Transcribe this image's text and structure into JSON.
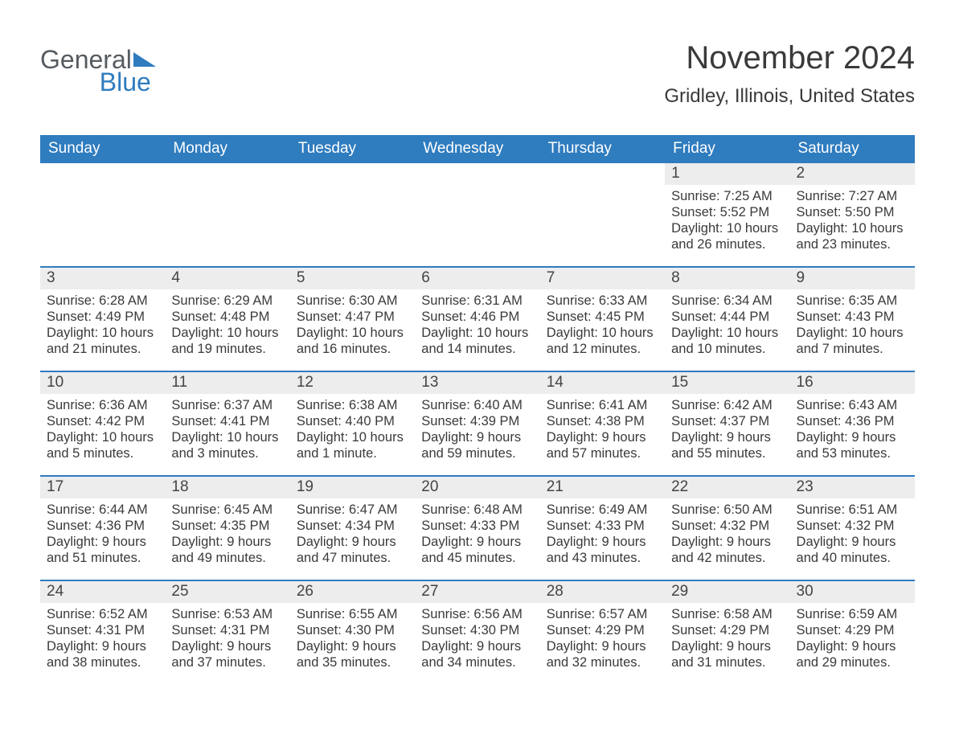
{
  "brand": {
    "part1": "General",
    "part2": "Blue"
  },
  "title": "November 2024",
  "location": "Gridley, Illinois, United States",
  "colors": {
    "header_bg": "#2f7cbf",
    "header_text": "#ffffff",
    "daynum_bg": "#ededed",
    "week_border": "#2f7cbf",
    "text": "#3a3a3a",
    "page_bg": "#ffffff"
  },
  "typography": {
    "title_fontsize": 40,
    "subtitle_fontsize": 24,
    "header_fontsize": 19,
    "daynum_fontsize": 19,
    "info_fontsize": 16.5,
    "font_family": "Arial"
  },
  "layout": {
    "columns": 7,
    "rows": 5,
    "first_day_column_index": 5
  },
  "day_headers": [
    "Sunday",
    "Monday",
    "Tuesday",
    "Wednesday",
    "Thursday",
    "Friday",
    "Saturday"
  ],
  "labels": {
    "sunrise": "Sunrise:",
    "sunset": "Sunset:",
    "daylight": "Daylight:"
  },
  "weeks": [
    [
      null,
      null,
      null,
      null,
      null,
      {
        "n": "1",
        "sunrise": "7:25 AM",
        "sunset": "5:52 PM",
        "daylight1": "10 hours",
        "daylight2": "and 26 minutes."
      },
      {
        "n": "2",
        "sunrise": "7:27 AM",
        "sunset": "5:50 PM",
        "daylight1": "10 hours",
        "daylight2": "and 23 minutes."
      }
    ],
    [
      {
        "n": "3",
        "sunrise": "6:28 AM",
        "sunset": "4:49 PM",
        "daylight1": "10 hours",
        "daylight2": "and 21 minutes."
      },
      {
        "n": "4",
        "sunrise": "6:29 AM",
        "sunset": "4:48 PM",
        "daylight1": "10 hours",
        "daylight2": "and 19 minutes."
      },
      {
        "n": "5",
        "sunrise": "6:30 AM",
        "sunset": "4:47 PM",
        "daylight1": "10 hours",
        "daylight2": "and 16 minutes."
      },
      {
        "n": "6",
        "sunrise": "6:31 AM",
        "sunset": "4:46 PM",
        "daylight1": "10 hours",
        "daylight2": "and 14 minutes."
      },
      {
        "n": "7",
        "sunrise": "6:33 AM",
        "sunset": "4:45 PM",
        "daylight1": "10 hours",
        "daylight2": "and 12 minutes."
      },
      {
        "n": "8",
        "sunrise": "6:34 AM",
        "sunset": "4:44 PM",
        "daylight1": "10 hours",
        "daylight2": "and 10 minutes."
      },
      {
        "n": "9",
        "sunrise": "6:35 AM",
        "sunset": "4:43 PM",
        "daylight1": "10 hours",
        "daylight2": "and 7 minutes."
      }
    ],
    [
      {
        "n": "10",
        "sunrise": "6:36 AM",
        "sunset": "4:42 PM",
        "daylight1": "10 hours",
        "daylight2": "and 5 minutes."
      },
      {
        "n": "11",
        "sunrise": "6:37 AM",
        "sunset": "4:41 PM",
        "daylight1": "10 hours",
        "daylight2": "and 3 minutes."
      },
      {
        "n": "12",
        "sunrise": "6:38 AM",
        "sunset": "4:40 PM",
        "daylight1": "10 hours",
        "daylight2": "and 1 minute."
      },
      {
        "n": "13",
        "sunrise": "6:40 AM",
        "sunset": "4:39 PM",
        "daylight1": "9 hours",
        "daylight2": "and 59 minutes."
      },
      {
        "n": "14",
        "sunrise": "6:41 AM",
        "sunset": "4:38 PM",
        "daylight1": "9 hours",
        "daylight2": "and 57 minutes."
      },
      {
        "n": "15",
        "sunrise": "6:42 AM",
        "sunset": "4:37 PM",
        "daylight1": "9 hours",
        "daylight2": "and 55 minutes."
      },
      {
        "n": "16",
        "sunrise": "6:43 AM",
        "sunset": "4:36 PM",
        "daylight1": "9 hours",
        "daylight2": "and 53 minutes."
      }
    ],
    [
      {
        "n": "17",
        "sunrise": "6:44 AM",
        "sunset": "4:36 PM",
        "daylight1": "9 hours",
        "daylight2": "and 51 minutes."
      },
      {
        "n": "18",
        "sunrise": "6:45 AM",
        "sunset": "4:35 PM",
        "daylight1": "9 hours",
        "daylight2": "and 49 minutes."
      },
      {
        "n": "19",
        "sunrise": "6:47 AM",
        "sunset": "4:34 PM",
        "daylight1": "9 hours",
        "daylight2": "and 47 minutes."
      },
      {
        "n": "20",
        "sunrise": "6:48 AM",
        "sunset": "4:33 PM",
        "daylight1": "9 hours",
        "daylight2": "and 45 minutes."
      },
      {
        "n": "21",
        "sunrise": "6:49 AM",
        "sunset": "4:33 PM",
        "daylight1": "9 hours",
        "daylight2": "and 43 minutes."
      },
      {
        "n": "22",
        "sunrise": "6:50 AM",
        "sunset": "4:32 PM",
        "daylight1": "9 hours",
        "daylight2": "and 42 minutes."
      },
      {
        "n": "23",
        "sunrise": "6:51 AM",
        "sunset": "4:32 PM",
        "daylight1": "9 hours",
        "daylight2": "and 40 minutes."
      }
    ],
    [
      {
        "n": "24",
        "sunrise": "6:52 AM",
        "sunset": "4:31 PM",
        "daylight1": "9 hours",
        "daylight2": "and 38 minutes."
      },
      {
        "n": "25",
        "sunrise": "6:53 AM",
        "sunset": "4:31 PM",
        "daylight1": "9 hours",
        "daylight2": "and 37 minutes."
      },
      {
        "n": "26",
        "sunrise": "6:55 AM",
        "sunset": "4:30 PM",
        "daylight1": "9 hours",
        "daylight2": "and 35 minutes."
      },
      {
        "n": "27",
        "sunrise": "6:56 AM",
        "sunset": "4:30 PM",
        "daylight1": "9 hours",
        "daylight2": "and 34 minutes."
      },
      {
        "n": "28",
        "sunrise": "6:57 AM",
        "sunset": "4:29 PM",
        "daylight1": "9 hours",
        "daylight2": "and 32 minutes."
      },
      {
        "n": "29",
        "sunrise": "6:58 AM",
        "sunset": "4:29 PM",
        "daylight1": "9 hours",
        "daylight2": "and 31 minutes."
      },
      {
        "n": "30",
        "sunrise": "6:59 AM",
        "sunset": "4:29 PM",
        "daylight1": "9 hours",
        "daylight2": "and 29 minutes."
      }
    ]
  ]
}
